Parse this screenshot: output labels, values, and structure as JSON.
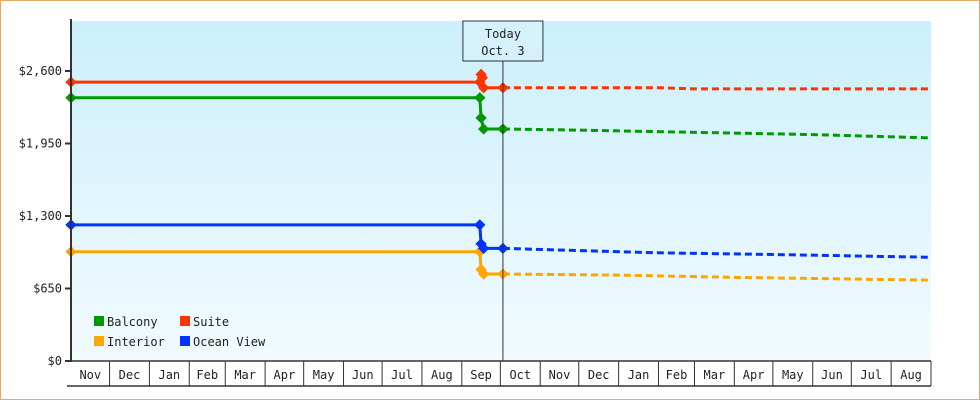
{
  "chart_data": {
    "type": "line",
    "title": "",
    "xlabel": "",
    "ylabel": "",
    "ylim": [
      0,
      2600
    ],
    "y_ticks": [
      "$0",
      "$650",
      "$1,300",
      "$1,950",
      "$2,600"
    ],
    "y_tick_values": [
      0,
      650,
      1300,
      1950,
      2600
    ],
    "x_start": "Nov 1",
    "x_end": "Aug 31",
    "months": [
      "Nov",
      "Dec",
      "Jan",
      "Feb",
      "Mar",
      "Apr",
      "May",
      "Jun",
      "Jul",
      "Aug",
      "Sep",
      "Oct",
      "Nov",
      "Dec",
      "Jan",
      "Feb",
      "Mar",
      "Apr",
      "May",
      "Jun",
      "Jul",
      "Aug"
    ],
    "grid": false,
    "legend_placement": "bottom-left",
    "today": {
      "label_line1": "Today",
      "label_line2": "Oct. 3",
      "date": "Oct 3"
    },
    "series": [
      {
        "name": "Balcony",
        "color": "#009900",
        "history": [
          [
            "Nov 1",
            2360
          ],
          [
            "Sep 15",
            2360
          ],
          [
            "Sep 16",
            2180
          ],
          [
            "Sep 18",
            2080
          ],
          [
            "Oct 3",
            2080
          ]
        ],
        "forecast": [
          [
            "Oct 3",
            2080
          ],
          [
            "Dec 1",
            2070
          ],
          [
            "Mar 1",
            2050
          ],
          [
            "Jun 1",
            2030
          ],
          [
            "Aug 31",
            2000
          ]
        ]
      },
      {
        "name": "Suite",
        "color": "#ff3300",
        "history": [
          [
            "Nov 1",
            2500
          ],
          [
            "Sep 15",
            2500
          ],
          [
            "Sep 16",
            2570
          ],
          [
            "Sep 17",
            2540
          ],
          [
            "Sep 18",
            2450
          ],
          [
            "Oct 3",
            2450
          ]
        ],
        "forecast": [
          [
            "Oct 3",
            2450
          ],
          [
            "Feb 1",
            2450
          ],
          [
            "Mar 1",
            2440
          ],
          [
            "Aug 31",
            2440
          ]
        ]
      },
      {
        "name": "Interior",
        "color": "#ffa500",
        "history": [
          [
            "Nov 1",
            980
          ],
          [
            "Sep 15",
            980
          ],
          [
            "Sep 16",
            820
          ],
          [
            "Sep 18",
            780
          ],
          [
            "Oct 3",
            780
          ]
        ],
        "forecast": [
          [
            "Oct 3",
            780
          ],
          [
            "Jan 1",
            770
          ],
          [
            "Apr 1",
            750
          ],
          [
            "Jun 1",
            740
          ],
          [
            "Aug 31",
            725
          ]
        ]
      },
      {
        "name": "Ocean View",
        "color": "#0033ff",
        "history": [
          [
            "Nov 1",
            1220
          ],
          [
            "Sep 15",
            1220
          ],
          [
            "Sep 16",
            1050
          ],
          [
            "Sep 18",
            1010
          ],
          [
            "Oct 3",
            1010
          ]
        ],
        "forecast": [
          [
            "Oct 3",
            1010
          ],
          [
            "Dec 1",
            990
          ],
          [
            "Feb 1",
            970
          ],
          [
            "May 1",
            955
          ],
          [
            "Aug 31",
            930
          ]
        ]
      }
    ]
  }
}
